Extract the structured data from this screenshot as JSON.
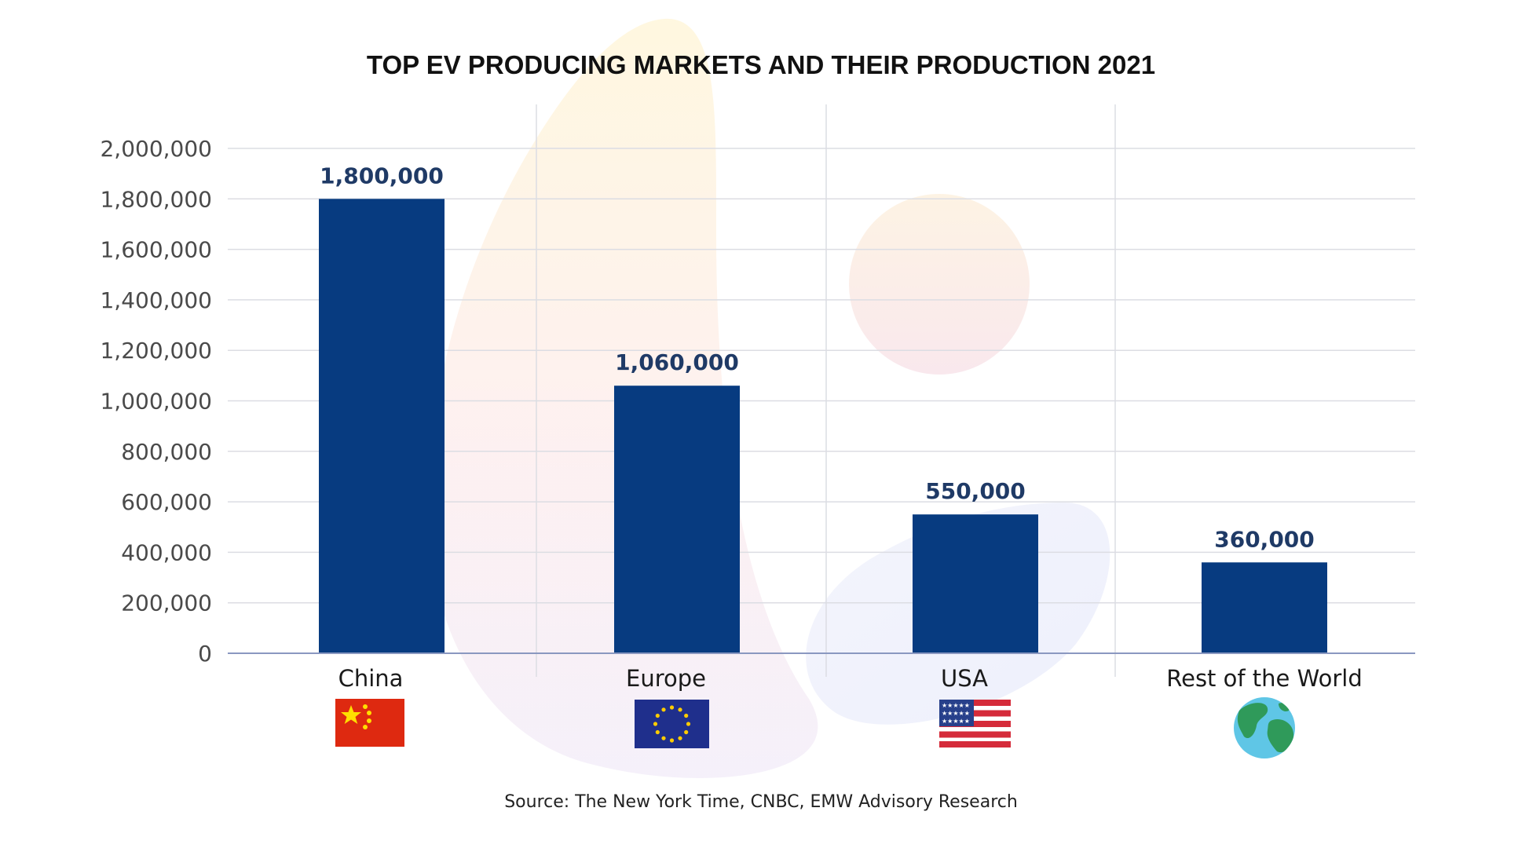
{
  "chart_data": {
    "type": "bar",
    "title": "TOP EV PRODUCING MARKETS AND THEIR PRODUCTION 2021",
    "xlabel": "",
    "ylabel": "",
    "categories": [
      "China",
      "Europe",
      "USA",
      "Rest of the World"
    ],
    "values": [
      1800000,
      1060000,
      550000,
      360000
    ],
    "data_labels": [
      "1,800,000",
      "1,060,000",
      "550,000",
      "360,000"
    ],
    "ylim": [
      0,
      2000000
    ],
    "yticks": [
      0,
      200000,
      400000,
      600000,
      800000,
      1000000,
      1200000,
      1400000,
      1600000,
      1800000,
      2000000
    ],
    "ytick_labels": [
      "0",
      "200,000",
      "400,000",
      "600,000",
      "800,000",
      "1,000,000",
      "1,200,000",
      "1,400,000",
      "1,600,000",
      "1,800,000",
      "2,000,000"
    ],
    "category_icons": [
      "china-flag-icon",
      "eu-flag-icon",
      "usa-flag-icon",
      "globe-icon"
    ],
    "grid": true,
    "legend": "none",
    "bar_color": "#073b80",
    "source": "Source: The New York Time, CNBC, EMW Advisory Research"
  }
}
